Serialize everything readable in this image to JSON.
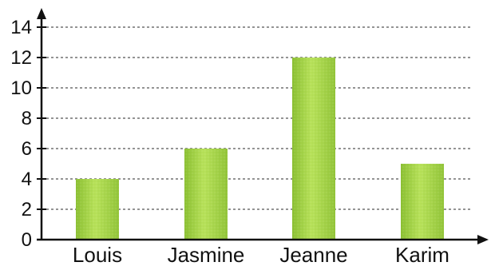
{
  "chart_data": {
    "type": "bar",
    "categories": [
      "Louis",
      "Jasmine",
      "Jeanne",
      "Karim"
    ],
    "values": [
      4,
      6,
      12,
      5
    ],
    "title": "",
    "xlabel": "",
    "ylabel": "",
    "ylim": [
      0,
      14
    ],
    "yticks": [
      0,
      2,
      4,
      6,
      8,
      10,
      12,
      14
    ],
    "grid": true,
    "colors": {
      "bar_fill": "#a7d84a",
      "bar_highlight": "#c9ec6a",
      "bar_shadow": "#86b92c",
      "axis": "#111111",
      "grid": "#555555"
    }
  }
}
